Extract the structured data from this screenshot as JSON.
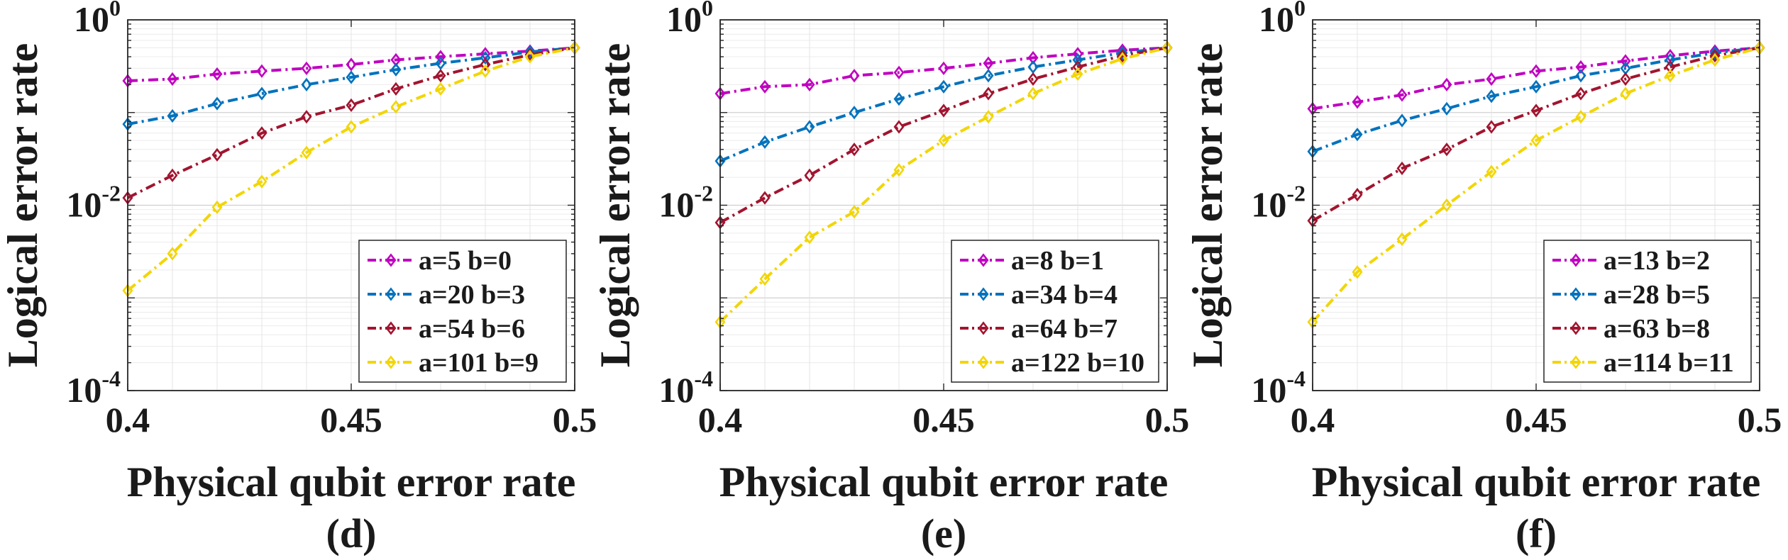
{
  "chart_data": [
    {
      "type": "line",
      "title": "",
      "caption": "(d)",
      "xlabel": "Physical qubit error rate",
      "ylabel": "Logical error rate",
      "xlim": [
        0.4,
        0.5
      ],
      "ylim": [
        0.0001,
        1
      ],
      "yscale": "log",
      "grid": true,
      "legend_position": "bottom-right",
      "xticks": [
        {
          "value": 0.4,
          "label": "0.4"
        },
        {
          "value": 0.45,
          "label": "0.45"
        },
        {
          "value": 0.5,
          "label": "0.5"
        }
      ],
      "yticks": [
        {
          "value": 1,
          "base": "10",
          "exp": "0"
        },
        {
          "value": 0.01,
          "base": "10",
          "exp": "-2"
        },
        {
          "value": 0.0001,
          "base": "10",
          "exp": "-4"
        }
      ],
      "x": [
        0.4,
        0.41,
        0.42,
        0.43,
        0.44,
        0.45,
        0.46,
        0.47,
        0.48,
        0.49,
        0.5
      ],
      "series": [
        {
          "name": "a=5 b=0",
          "color": "#C000C0",
          "values": [
            0.22,
            0.23,
            0.26,
            0.28,
            0.3,
            0.33,
            0.37,
            0.4,
            0.43,
            0.46,
            0.5
          ]
        },
        {
          "name": "a=20 b=3",
          "color": "#0072BD",
          "values": [
            0.075,
            0.092,
            0.125,
            0.16,
            0.2,
            0.24,
            0.29,
            0.34,
            0.39,
            0.45,
            0.5
          ]
        },
        {
          "name": "a=54 b=6",
          "color": "#A2142F",
          "values": [
            0.012,
            0.021,
            0.035,
            0.06,
            0.09,
            0.12,
            0.18,
            0.25,
            0.33,
            0.42,
            0.5
          ]
        },
        {
          "name": "a=101 b=9",
          "color": "#F2D600",
          "values": [
            0.0012,
            0.003,
            0.0095,
            0.018,
            0.037,
            0.07,
            0.115,
            0.18,
            0.28,
            0.4,
            0.5
          ]
        }
      ]
    },
    {
      "type": "line",
      "title": "",
      "caption": "(e)",
      "xlabel": "Physical qubit error rate",
      "ylabel": "Logical error rate",
      "xlim": [
        0.4,
        0.5
      ],
      "ylim": [
        0.0001,
        1
      ],
      "yscale": "log",
      "grid": true,
      "legend_position": "bottom-right",
      "xticks": [
        {
          "value": 0.4,
          "label": "0.4"
        },
        {
          "value": 0.45,
          "label": "0.45"
        },
        {
          "value": 0.5,
          "label": "0.5"
        }
      ],
      "yticks": [
        {
          "value": 1,
          "base": "10",
          "exp": "0"
        },
        {
          "value": 0.01,
          "base": "10",
          "exp": "-2"
        },
        {
          "value": 0.0001,
          "base": "10",
          "exp": "-4"
        }
      ],
      "x": [
        0.4,
        0.41,
        0.42,
        0.43,
        0.44,
        0.45,
        0.46,
        0.47,
        0.48,
        0.49,
        0.5
      ],
      "series": [
        {
          "name": "a=8 b=1",
          "color": "#C000C0",
          "values": [
            0.16,
            0.19,
            0.2,
            0.25,
            0.27,
            0.3,
            0.34,
            0.39,
            0.43,
            0.47,
            0.5
          ]
        },
        {
          "name": "a=34 b=4",
          "color": "#0072BD",
          "values": [
            0.03,
            0.048,
            0.07,
            0.1,
            0.14,
            0.19,
            0.25,
            0.31,
            0.37,
            0.44,
            0.5
          ]
        },
        {
          "name": "a=64 b=7",
          "color": "#A2142F",
          "values": [
            0.0065,
            0.012,
            0.021,
            0.04,
            0.07,
            0.105,
            0.16,
            0.23,
            0.31,
            0.41,
            0.5
          ]
        },
        {
          "name": "a=122 b=10",
          "color": "#F2D600",
          "values": [
            0.00055,
            0.0016,
            0.0045,
            0.0085,
            0.024,
            0.05,
            0.09,
            0.16,
            0.26,
            0.38,
            0.5
          ]
        }
      ]
    },
    {
      "type": "line",
      "title": "",
      "caption": "(f)",
      "xlabel": "Physical qubit error rate",
      "ylabel": "Logical error rate",
      "xlim": [
        0.4,
        0.5
      ],
      "ylim": [
        0.0001,
        1
      ],
      "yscale": "log",
      "grid": true,
      "legend_position": "bottom-right",
      "xticks": [
        {
          "value": 0.4,
          "label": "0.4"
        },
        {
          "value": 0.45,
          "label": "0.45"
        },
        {
          "value": 0.5,
          "label": "0.5"
        }
      ],
      "yticks": [
        {
          "value": 1,
          "base": "10",
          "exp": "0"
        },
        {
          "value": 0.01,
          "base": "10",
          "exp": "-2"
        },
        {
          "value": 0.0001,
          "base": "10",
          "exp": "-4"
        }
      ],
      "x": [
        0.4,
        0.41,
        0.42,
        0.43,
        0.44,
        0.45,
        0.46,
        0.47,
        0.48,
        0.49,
        0.5
      ],
      "series": [
        {
          "name": "a=13 b=2",
          "color": "#C000C0",
          "values": [
            0.11,
            0.13,
            0.155,
            0.2,
            0.23,
            0.28,
            0.31,
            0.36,
            0.41,
            0.46,
            0.5
          ]
        },
        {
          "name": "a=28 b=5",
          "color": "#0072BD",
          "values": [
            0.038,
            0.058,
            0.082,
            0.11,
            0.15,
            0.19,
            0.25,
            0.3,
            0.37,
            0.44,
            0.5
          ]
        },
        {
          "name": "a=63 b=8",
          "color": "#A2142F",
          "values": [
            0.0068,
            0.013,
            0.025,
            0.04,
            0.07,
            0.105,
            0.16,
            0.23,
            0.31,
            0.41,
            0.5
          ]
        },
        {
          "name": "a=114 b=11",
          "color": "#F2D600",
          "values": [
            0.00055,
            0.0019,
            0.0043,
            0.01,
            0.023,
            0.05,
            0.09,
            0.16,
            0.25,
            0.37,
            0.5
          ]
        }
      ]
    }
  ]
}
